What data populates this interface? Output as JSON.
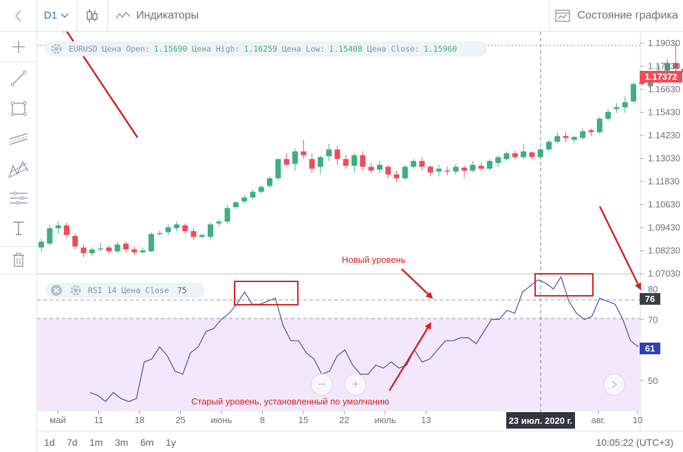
{
  "topbar": {
    "timeframe": "D1",
    "indicators_label": "Индикаторы",
    "chart_state_label": "Состояние графика"
  },
  "legend": {
    "symbol": "EURUSD",
    "open_label": "Цена Open:",
    "open": "1.15690",
    "high_label": "Цена High:",
    "high": "1.16259",
    "low_label": "Цена Low:",
    "low": "1.15408",
    "close_label": "Цена Close:",
    "close": "1.15960"
  },
  "rsi_legend": {
    "name": "RSI 14 Цена Close",
    "value": "75"
  },
  "price_axis": [
    "1.19030",
    "1.17830",
    "1.16630",
    "1.15430",
    "1.14230",
    "1.13030",
    "1.11830",
    "1.10630",
    "1.09430",
    "1.08230",
    "1.07030"
  ],
  "rsi_axis": [
    "80",
    "70",
    "50"
  ],
  "price_tags": {
    "current_price": "1.17372",
    "rsi_level": "76",
    "rsi_value": "61"
  },
  "time_axis": [
    "май",
    "11",
    "18",
    "25",
    "июнь",
    "8",
    "15",
    "22",
    "июль",
    "13",
    "авг.",
    "10"
  ],
  "crosshair_date": "23 июл. 2020 г.",
  "timeframes": [
    "1d",
    "7d",
    "1m",
    "3m",
    "6m",
    "1y"
  ],
  "clock": "10:05:22 (UTC+3)",
  "annotations": {
    "new_level": "Новый уровень",
    "old_level": "Старый уровень, установленный по умолчанию"
  },
  "colors": {
    "up_candle": "#3fae80",
    "down_candle": "#ef4c5a",
    "rsi_line": "#3f4ba3",
    "rsi_zone": "#f3e8fb",
    "annotation": "#d42020",
    "rsi_value_tag": "#3040b8"
  },
  "icons": [
    "chevron-left-icon",
    "chevron-down-icon",
    "candles-icon",
    "indicator-wave-icon",
    "chart-state-icon",
    "crosshair-icon",
    "trendline-icon",
    "rectangle-icon",
    "channel-icon",
    "fib-icon",
    "levels-icon",
    "text-icon",
    "trash-icon",
    "gear-icon",
    "close-circle-icon",
    "zoom-out-icon",
    "zoom-in-icon",
    "scroll-right-icon"
  ],
  "chart_data": {
    "type": "candlestick",
    "title": "",
    "candles": [
      {
        "o": 1.084,
        "h": 1.0885,
        "l": 1.0818,
        "c": 1.087
      },
      {
        "o": 1.086,
        "h": 1.0955,
        "l": 1.085,
        "c": 1.094
      },
      {
        "o": 1.094,
        "h": 1.0975,
        "l": 1.091,
        "c": 1.0955
      },
      {
        "o": 1.0955,
        "h": 1.097,
        "l": 1.089,
        "c": 1.0905
      },
      {
        "o": 1.09,
        "h": 1.0915,
        "l": 1.083,
        "c": 1.0845
      },
      {
        "o": 1.084,
        "h": 1.0855,
        "l": 1.079,
        "c": 1.081
      },
      {
        "o": 1.081,
        "h": 1.084,
        "l": 1.0795,
        "c": 1.083
      },
      {
        "o": 1.083,
        "h": 1.0865,
        "l": 1.082,
        "c": 1.0835
      },
      {
        "o": 1.084,
        "h": 1.085,
        "l": 1.0805,
        "c": 1.082
      },
      {
        "o": 1.082,
        "h": 1.087,
        "l": 1.081,
        "c": 1.0855
      },
      {
        "o": 1.086,
        "h": 1.087,
        "l": 1.0815,
        "c": 1.083
      },
      {
        "o": 1.083,
        "h": 1.0845,
        "l": 1.08,
        "c": 1.0815
      },
      {
        "o": 1.0815,
        "h": 1.084,
        "l": 1.081,
        "c": 1.0825
      },
      {
        "o": 1.082,
        "h": 1.092,
        "l": 1.0815,
        "c": 1.091
      },
      {
        "o": 1.091,
        "h": 1.093,
        "l": 1.09,
        "c": 1.0915
      },
      {
        "o": 1.092,
        "h": 1.096,
        "l": 1.0905,
        "c": 1.0945
      },
      {
        "o": 1.094,
        "h": 1.0975,
        "l": 1.0925,
        "c": 1.096
      },
      {
        "o": 1.0955,
        "h": 1.0965,
        "l": 1.091,
        "c": 1.0925
      },
      {
        "o": 1.0925,
        "h": 1.094,
        "l": 1.088,
        "c": 1.0895
      },
      {
        "o": 1.0895,
        "h": 1.091,
        "l": 1.0885,
        "c": 1.0905
      },
      {
        "o": 1.0895,
        "h": 1.097,
        "l": 1.0885,
        "c": 1.096
      },
      {
        "o": 1.0965,
        "h": 1.0985,
        "l": 1.095,
        "c": 1.0975
      },
      {
        "o": 1.0975,
        "h": 1.106,
        "l": 1.0965,
        "c": 1.1045
      },
      {
        "o": 1.105,
        "h": 1.108,
        "l": 1.104,
        "c": 1.1075
      },
      {
        "o": 1.108,
        "h": 1.111,
        "l": 1.107,
        "c": 1.11
      },
      {
        "o": 1.11,
        "h": 1.114,
        "l": 1.109,
        "c": 1.113
      },
      {
        "o": 1.113,
        "h": 1.1165,
        "l": 1.112,
        "c": 1.1155
      },
      {
        "o": 1.116,
        "h": 1.121,
        "l": 1.115,
        "c": 1.12
      },
      {
        "o": 1.12,
        "h": 1.13,
        "l": 1.119,
        "c": 1.13
      },
      {
        "o": 1.13,
        "h": 1.133,
        "l": 1.126,
        "c": 1.127
      },
      {
        "o": 1.1275,
        "h": 1.1355,
        "l": 1.124,
        "c": 1.134
      },
      {
        "o": 1.134,
        "h": 1.14,
        "l": 1.13,
        "c": 1.132
      },
      {
        "o": 1.13,
        "h": 1.133,
        "l": 1.123,
        "c": 1.125
      },
      {
        "o": 1.126,
        "h": 1.132,
        "l": 1.122,
        "c": 1.131
      },
      {
        "o": 1.1315,
        "h": 1.138,
        "l": 1.129,
        "c": 1.135
      },
      {
        "o": 1.135,
        "h": 1.137,
        "l": 1.127,
        "c": 1.13
      },
      {
        "o": 1.13,
        "h": 1.132,
        "l": 1.125,
        "c": 1.1265
      },
      {
        "o": 1.1265,
        "h": 1.133,
        "l": 1.123,
        "c": 1.132
      },
      {
        "o": 1.132,
        "h": 1.134,
        "l": 1.124,
        "c": 1.126
      },
      {
        "o": 1.126,
        "h": 1.128,
        "l": 1.1225,
        "c": 1.124
      },
      {
        "o": 1.1245,
        "h": 1.129,
        "l": 1.123,
        "c": 1.127
      },
      {
        "o": 1.126,
        "h": 1.127,
        "l": 1.12,
        "c": 1.122
      },
      {
        "o": 1.122,
        "h": 1.124,
        "l": 1.118,
        "c": 1.12
      },
      {
        "o": 1.12,
        "h": 1.127,
        "l": 1.119,
        "c": 1.126
      },
      {
        "o": 1.126,
        "h": 1.13,
        "l": 1.125,
        "c": 1.129
      },
      {
        "o": 1.129,
        "h": 1.131,
        "l": 1.124,
        "c": 1.126
      },
      {
        "o": 1.126,
        "h": 1.127,
        "l": 1.121,
        "c": 1.123
      },
      {
        "o": 1.1235,
        "h": 1.127,
        "l": 1.121,
        "c": 1.125
      },
      {
        "o": 1.124,
        "h": 1.126,
        "l": 1.1215,
        "c": 1.1235
      },
      {
        "o": 1.1235,
        "h": 1.1275,
        "l": 1.122,
        "c": 1.126
      },
      {
        "o": 1.1255,
        "h": 1.1265,
        "l": 1.12,
        "c": 1.124
      },
      {
        "o": 1.124,
        "h": 1.129,
        "l": 1.123,
        "c": 1.127
      },
      {
        "o": 1.1265,
        "h": 1.128,
        "l": 1.124,
        "c": 1.125
      },
      {
        "o": 1.125,
        "h": 1.13,
        "l": 1.124,
        "c": 1.129
      },
      {
        "o": 1.128,
        "h": 1.132,
        "l": 1.126,
        "c": 1.131
      },
      {
        "o": 1.13,
        "h": 1.134,
        "l": 1.129,
        "c": 1.133
      },
      {
        "o": 1.133,
        "h": 1.1345,
        "l": 1.13,
        "c": 1.131
      },
      {
        "o": 1.131,
        "h": 1.138,
        "l": 1.13,
        "c": 1.134
      },
      {
        "o": 1.1335,
        "h": 1.134,
        "l": 1.1295,
        "c": 1.131
      },
      {
        "o": 1.131,
        "h": 1.136,
        "l": 1.13,
        "c": 1.135
      },
      {
        "o": 1.135,
        "h": 1.14,
        "l": 1.134,
        "c": 1.139
      },
      {
        "o": 1.139,
        "h": 1.144,
        "l": 1.138,
        "c": 1.142
      },
      {
        "o": 1.142,
        "h": 1.144,
        "l": 1.139,
        "c": 1.141
      },
      {
        "o": 1.14,
        "h": 1.142,
        "l": 1.138,
        "c": 1.1415
      },
      {
        "o": 1.141,
        "h": 1.146,
        "l": 1.14,
        "c": 1.1445
      },
      {
        "o": 1.145,
        "h": 1.146,
        "l": 1.142,
        "c": 1.144
      },
      {
        "o": 1.144,
        "h": 1.152,
        "l": 1.143,
        "c": 1.151
      },
      {
        "o": 1.151,
        "h": 1.156,
        "l": 1.15,
        "c": 1.1545
      },
      {
        "o": 1.156,
        "h": 1.159,
        "l": 1.154,
        "c": 1.157
      },
      {
        "o": 1.1569,
        "h": 1.1626,
        "l": 1.1541,
        "c": 1.1596
      },
      {
        "o": 1.16,
        "h": 1.17,
        "l": 1.159,
        "c": 1.169
      },
      {
        "o": 1.17,
        "h": 1.171,
        "l": 1.168,
        "c": 1.169
      },
      {
        "o": 1.168,
        "h": 1.172,
        "l": 1.167,
        "c": 1.171
      },
      {
        "o": 1.17,
        "h": 1.179,
        "l": 1.169,
        "c": 1.176
      },
      {
        "o": 1.176,
        "h": 1.182,
        "l": 1.175,
        "c": 1.18
      },
      {
        "o": 1.18,
        "h": 1.191,
        "l": 1.176,
        "c": 1.177
      },
      {
        "o": 1.177,
        "h": 1.179,
        "l": 1.169,
        "c": 1.175
      },
      {
        "o": 1.175,
        "h": 1.18,
        "l": 1.173,
        "c": 1.178
      },
      {
        "o": 1.179,
        "h": 1.186,
        "l": 1.178,
        "c": 1.184
      },
      {
        "o": 1.185,
        "h": 1.19,
        "l": 1.183,
        "c": 1.186
      },
      {
        "o": 1.186,
        "h": 1.188,
        "l": 1.176,
        "c": 1.178
      },
      {
        "o": 1.177,
        "h": 1.179,
        "l": 1.173,
        "c": 1.1737
      }
    ],
    "rsi": [
      46,
      45,
      43,
      46,
      44,
      43,
      44,
      56,
      57,
      61,
      58,
      53,
      52,
      59,
      61,
      66,
      67,
      70,
      72,
      75,
      79,
      75,
      75,
      76,
      77,
      68,
      63,
      63,
      59,
      57,
      52,
      53,
      58,
      60,
      55,
      52,
      52,
      55,
      54,
      56,
      54,
      55,
      60,
      56,
      57,
      60,
      63,
      63,
      64,
      64,
      62,
      66,
      70,
      70,
      73,
      72,
      79,
      81,
      83,
      82,
      80,
      84,
      76,
      72,
      70,
      71,
      77,
      76,
      75,
      70,
      63,
      61
    ],
    "rsi_levels": {
      "default": 70,
      "new": 76
    },
    "price_ylim": [
      1.0703,
      1.1963
    ],
    "rsi_ylim": [
      40,
      85
    ]
  }
}
